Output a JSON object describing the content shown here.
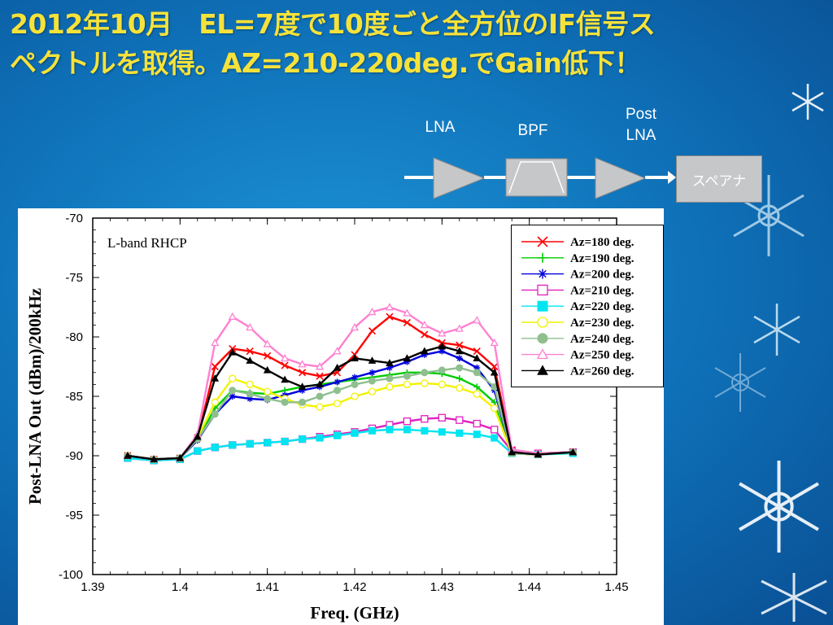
{
  "slide": {
    "title_line1": "2012年10月　EL=7度で10度ごと全方位のIF信号ス",
    "title_line2": "ペクトルを取得。AZ=210-220deg.でGain低下！"
  },
  "diagram": {
    "lna_label": "LNA",
    "bpf_label": "BPF",
    "post_lna_label_1": "Post",
    "post_lna_label_2": "LNA",
    "analyzer_label": "スペアナ",
    "block_color": "#c6c7c9",
    "arrow_color": "#ffffff"
  },
  "chart_data": {
    "type": "line",
    "annotation": "L-band RHCP",
    "xlabel": "Freq. (GHz)",
    "ylabel": "Post-LNA Out (dBm)/200kHz",
    "xlim": [
      1.39,
      1.45
    ],
    "ylim": [
      -100,
      -70
    ],
    "x_ticks": [
      "1.39",
      "1.4",
      "1.41",
      "1.42",
      "1.43",
      "1.44",
      "1.45"
    ],
    "y_ticks": [
      "-70",
      "-75",
      "-80",
      "-85",
      "-90",
      "-95",
      "-100"
    ],
    "grid": false,
    "legend_position": "top-right",
    "x": [
      1.394,
      1.397,
      1.4,
      1.402,
      1.404,
      1.406,
      1.408,
      1.41,
      1.412,
      1.414,
      1.416,
      1.418,
      1.42,
      1.422,
      1.424,
      1.426,
      1.428,
      1.43,
      1.432,
      1.434,
      1.436,
      1.438,
      1.441,
      1.445
    ],
    "series": [
      {
        "name": "Az=180 deg.",
        "color": "#ff0000",
        "marker": "x",
        "values": [
          -90.0,
          -90.3,
          -90.2,
          -88.5,
          -82.5,
          -81.0,
          -81.2,
          -81.6,
          -82.4,
          -83.0,
          -83.3,
          -83.0,
          -81.5,
          -79.5,
          -78.3,
          -78.8,
          -79.8,
          -80.5,
          -80.7,
          -81.2,
          -82.5,
          -89.5,
          -89.8,
          -89.7
        ]
      },
      {
        "name": "Az=190 deg.",
        "color": "#00cc00",
        "marker": "+",
        "values": [
          -90.0,
          -90.3,
          -90.2,
          -88.7,
          -86.0,
          -84.5,
          -84.7,
          -84.8,
          -84.5,
          -84.2,
          -84.0,
          -83.8,
          -83.6,
          -83.4,
          -83.2,
          -83.0,
          -83.0,
          -83.1,
          -83.5,
          -84.2,
          -85.5,
          -89.8,
          -89.9,
          -89.7
        ]
      },
      {
        "name": "Az=200 deg.",
        "color": "#0000dd",
        "marker": "*",
        "values": [
          -90.0,
          -90.3,
          -90.2,
          -88.7,
          -86.5,
          -85.0,
          -85.2,
          -85.3,
          -84.9,
          -84.5,
          -84.2,
          -83.8,
          -83.4,
          -83.0,
          -82.6,
          -82.1,
          -81.5,
          -81.2,
          -81.8,
          -82.6,
          -84.5,
          -89.8,
          -89.9,
          -89.7
        ]
      },
      {
        "name": "Az=210 deg.",
        "color": "#e020c0",
        "marker": "square-open",
        "values": [
          -90.2,
          -90.4,
          -90.3,
          -89.6,
          -89.3,
          -89.1,
          -89.0,
          -88.9,
          -88.8,
          -88.6,
          -88.4,
          -88.2,
          -88.0,
          -87.7,
          -87.4,
          -87.1,
          -86.9,
          -86.8,
          -87.0,
          -87.3,
          -87.8,
          -89.6,
          -89.8,
          -89.7
        ]
      },
      {
        "name": "Az=220 deg.",
        "color": "#00e5f0",
        "marker": "square-filled",
        "values": [
          -90.2,
          -90.4,
          -90.3,
          -89.6,
          -89.3,
          -89.1,
          -89.0,
          -88.9,
          -88.8,
          -88.6,
          -88.5,
          -88.3,
          -88.1,
          -87.9,
          -87.8,
          -87.8,
          -87.9,
          -88.0,
          -88.1,
          -88.2,
          -88.5,
          -89.8,
          -89.9,
          -89.8
        ]
      },
      {
        "name": "Az=230 deg.",
        "color": "#f2f200",
        "marker": "circle-open",
        "values": [
          -90.0,
          -90.3,
          -90.2,
          -88.5,
          -85.5,
          -83.5,
          -84.0,
          -84.6,
          -85.2,
          -85.7,
          -85.9,
          -85.6,
          -85.0,
          -84.6,
          -84.2,
          -84.0,
          -83.9,
          -84.0,
          -84.3,
          -84.8,
          -86.0,
          -89.8,
          -89.9,
          -89.7
        ]
      },
      {
        "name": "Az=240 deg.",
        "color": "#8fbf8f",
        "marker": "circle-filled",
        "values": [
          -90.0,
          -90.3,
          -90.2,
          -88.6,
          -86.5,
          -84.5,
          -84.8,
          -85.2,
          -85.5,
          -85.5,
          -85.0,
          -84.5,
          -84.0,
          -83.7,
          -83.5,
          -83.3,
          -83.0,
          -82.8,
          -82.6,
          -83.0,
          -84.2,
          -89.8,
          -89.9,
          -89.7
        ]
      },
      {
        "name": "Az=250 deg.",
        "color": "#ff80d0",
        "marker": "triangle-open",
        "values": [
          -90.0,
          -90.3,
          -90.2,
          -88.2,
          -80.5,
          -78.3,
          -79.2,
          -80.6,
          -81.8,
          -82.3,
          -82.5,
          -81.2,
          -79.2,
          -77.9,
          -77.5,
          -78.0,
          -79.0,
          -79.7,
          -79.3,
          -78.6,
          -80.5,
          -89.5,
          -89.8,
          -89.7
        ]
      },
      {
        "name": "Az=260 deg.",
        "color": "#000000",
        "marker": "triangle-filled",
        "values": [
          -90.0,
          -90.3,
          -90.2,
          -88.4,
          -83.5,
          -81.3,
          -82.0,
          -82.8,
          -83.6,
          -84.2,
          -84.0,
          -82.6,
          -81.8,
          -82.0,
          -82.2,
          -81.8,
          -81.2,
          -80.8,
          -81.2,
          -81.8,
          -83.0,
          -89.7,
          -89.9,
          -89.7
        ]
      }
    ]
  }
}
